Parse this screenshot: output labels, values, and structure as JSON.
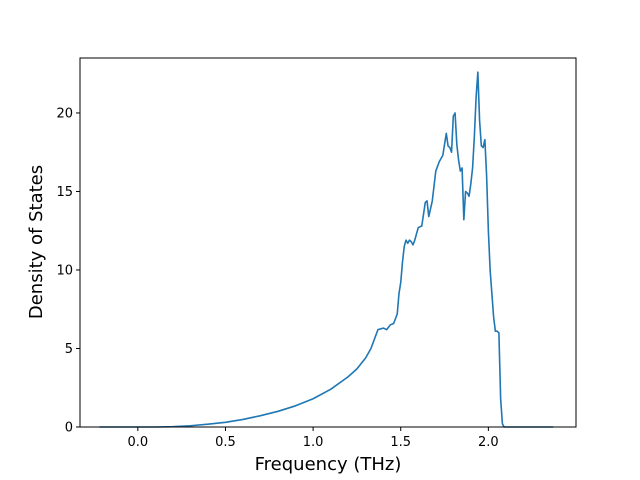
{
  "chart_data": {
    "type": "line",
    "title": "",
    "xlabel": "Frequency (THz)",
    "ylabel": "Density of States",
    "xlim": [
      -0.33,
      2.5
    ],
    "ylim": [
      0,
      23.5
    ],
    "xticks": [
      0.0,
      0.5,
      1.0,
      1.5,
      2.0
    ],
    "xtick_labels": [
      "0.0",
      "0.5",
      "1.0",
      "1.5",
      "2.0"
    ],
    "yticks": [
      0,
      5,
      10,
      15,
      20
    ],
    "ytick_labels": [
      "0",
      "5",
      "10",
      "15",
      "20"
    ],
    "grid": false,
    "legend": "none",
    "line_color": "#1f77b4",
    "series": [
      {
        "x": [
          -0.22,
          0.0,
          0.1,
          0.2,
          0.3,
          0.4,
          0.5,
          0.6,
          0.7,
          0.8,
          0.9,
          1.0,
          1.1,
          1.2,
          1.25,
          1.3,
          1.33,
          1.35,
          1.37,
          1.4,
          1.42,
          1.44,
          1.46,
          1.48,
          1.49,
          1.5,
          1.51,
          1.52,
          1.53,
          1.54,
          1.55,
          1.56,
          1.57,
          1.58,
          1.6,
          1.62,
          1.64,
          1.65,
          1.66,
          1.68,
          1.7,
          1.72,
          1.74,
          1.76,
          1.77,
          1.78,
          1.79,
          1.8,
          1.81,
          1.82,
          1.83,
          1.84,
          1.85,
          1.86,
          1.87,
          1.88,
          1.89,
          1.9,
          1.91,
          1.92,
          1.93,
          1.94,
          1.95,
          1.96,
          1.97,
          1.98,
          1.99,
          2.0,
          2.01,
          2.02,
          2.03,
          2.04,
          2.05,
          2.06,
          2.07,
          2.08,
          2.09,
          2.1,
          2.11,
          2.12,
          2.13,
          2.14,
          2.145,
          2.15,
          2.16,
          2.2,
          2.37
        ],
        "y": [
          0,
          0,
          0,
          0.02,
          0.08,
          0.18,
          0.3,
          0.48,
          0.72,
          1.0,
          1.35,
          1.8,
          2.4,
          3.2,
          3.7,
          4.4,
          5.0,
          5.6,
          6.2,
          6.3,
          6.2,
          6.5,
          6.6,
          7.2,
          8.5,
          9.2,
          10.5,
          11.5,
          11.9,
          11.7,
          11.9,
          11.8,
          11.6,
          11.9,
          12.7,
          12.8,
          14.3,
          14.4,
          13.4,
          14.4,
          16.3,
          16.9,
          17.3,
          18.7,
          17.9,
          17.8,
          17.5,
          19.8,
          20.0,
          18.0,
          17.0,
          16.3,
          16.5,
          13.2,
          15.0,
          14.9,
          14.7,
          15.5,
          16.5,
          18.5,
          21.0,
          22.6,
          19.5,
          17.9,
          17.8,
          18.3,
          16.0,
          12.5,
          10.0,
          8.5,
          7.0,
          6.1,
          6.1,
          6.0,
          1.8,
          0.2,
          0,
          0,
          0,
          0,
          0,
          0,
          0,
          0,
          0,
          0,
          0
        ]
      }
    ]
  }
}
